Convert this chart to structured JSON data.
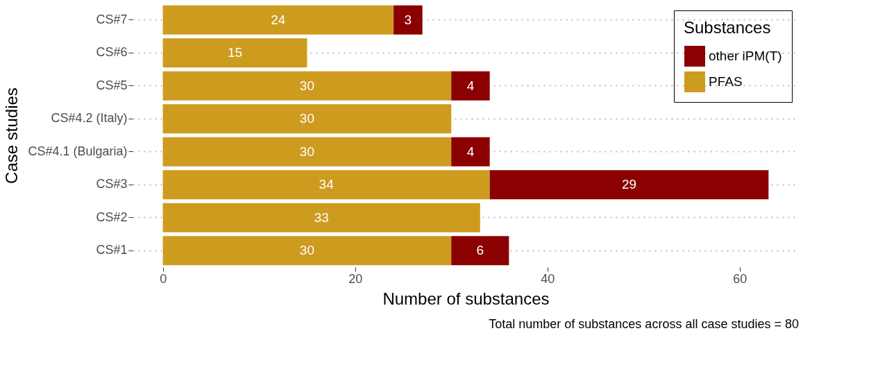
{
  "chart_data": {
    "type": "bar",
    "orientation": "horizontal",
    "stacked": true,
    "xlabel": "Number of substances",
    "ylabel": "Case studies",
    "legend_title": "Substances",
    "categories": [
      "CS#7",
      "CS#6",
      "CS#5",
      "CS#4.2 (Italy)",
      "CS#4.1 (Bulgaria)",
      "CS#3",
      "CS#2",
      "CS#1"
    ],
    "series": [
      {
        "name": "PFAS",
        "color": "#cd9b1d",
        "values": [
          24,
          15,
          30,
          30,
          30,
          34,
          33,
          30
        ]
      },
      {
        "name": "other iPM(T)",
        "color": "#8b0000",
        "values": [
          3,
          null,
          4,
          null,
          4,
          29,
          null,
          6
        ]
      }
    ],
    "xlim": [
      -3.15,
      66.15
    ],
    "xticks": [
      0,
      20,
      40,
      60
    ],
    "grid": "y",
    "legend": "top right",
    "data_labels": true,
    "annotations": [
      "Total number of substances across all case studies = 80"
    ]
  }
}
